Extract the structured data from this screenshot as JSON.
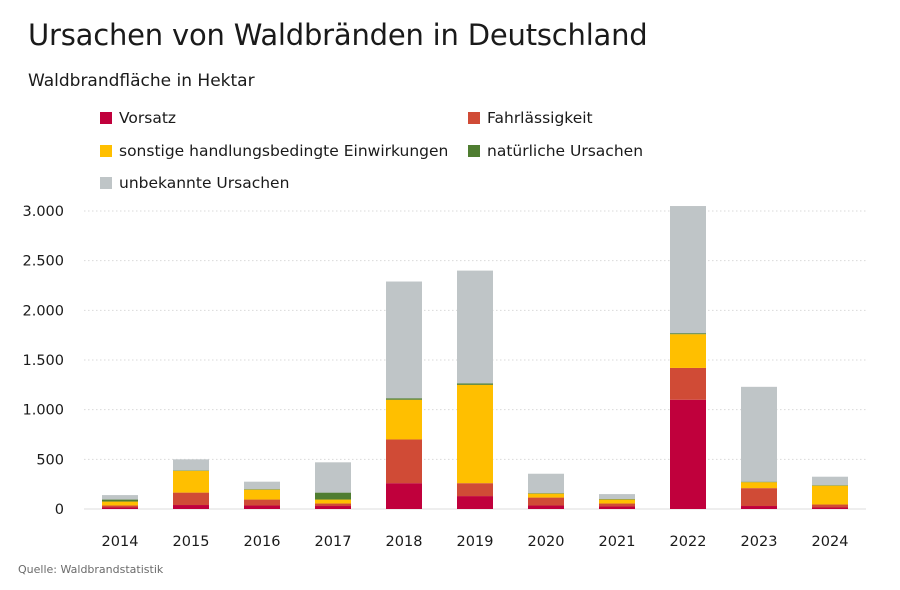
{
  "title": "Ursachen von Waldbränden in Deutschland",
  "subtitle": "Waldbrandfläche in Hektar",
  "source": "Quelle: Waldbrandstatistik",
  "chart_data": {
    "type": "bar",
    "stacked": true,
    "title": "Ursachen von Waldbränden in Deutschland",
    "subtitle": "Waldbrandfläche in Hektar",
    "xlabel": "",
    "ylabel": "",
    "ylim": [
      0,
      3000
    ],
    "yticks": [
      0,
      500,
      1000,
      1500,
      2000,
      2500,
      3000
    ],
    "ytick_labels": [
      "0",
      "500",
      "1.000",
      "1.500",
      "2.000",
      "2.500",
      "3.000"
    ],
    "grid": true,
    "legend_position": "top",
    "categories": [
      "2014",
      "2015",
      "2016",
      "2017",
      "2018",
      "2019",
      "2020",
      "2021",
      "2022",
      "2023",
      "2024"
    ],
    "series": [
      {
        "name": "Vorsatz",
        "color": "#c0003c",
        "values": [
          15,
          40,
          35,
          30,
          260,
          130,
          35,
          25,
          1100,
          30,
          15
        ]
      },
      {
        "name": "Fahrlässigkeit",
        "color": "#d04b36",
        "values": [
          20,
          125,
          60,
          25,
          440,
          130,
          80,
          30,
          320,
          180,
          30
        ]
      },
      {
        "name": "sonstige handlungsbedingte Einwirkungen",
        "color": "#ffbf00",
        "values": [
          40,
          220,
          100,
          40,
          400,
          990,
          40,
          40,
          340,
          60,
          190
        ]
      },
      {
        "name": "natürliche Ursachen",
        "color": "#4f7d31",
        "values": [
          20,
          5,
          5,
          70,
          15,
          15,
          5,
          5,
          10,
          5,
          5
        ]
      },
      {
        "name": "unbekannte Ursachen",
        "color": "#bfc5c7",
        "values": [
          45,
          110,
          75,
          305,
          1175,
          1135,
          195,
          50,
          1280,
          955,
          85
        ]
      }
    ]
  }
}
